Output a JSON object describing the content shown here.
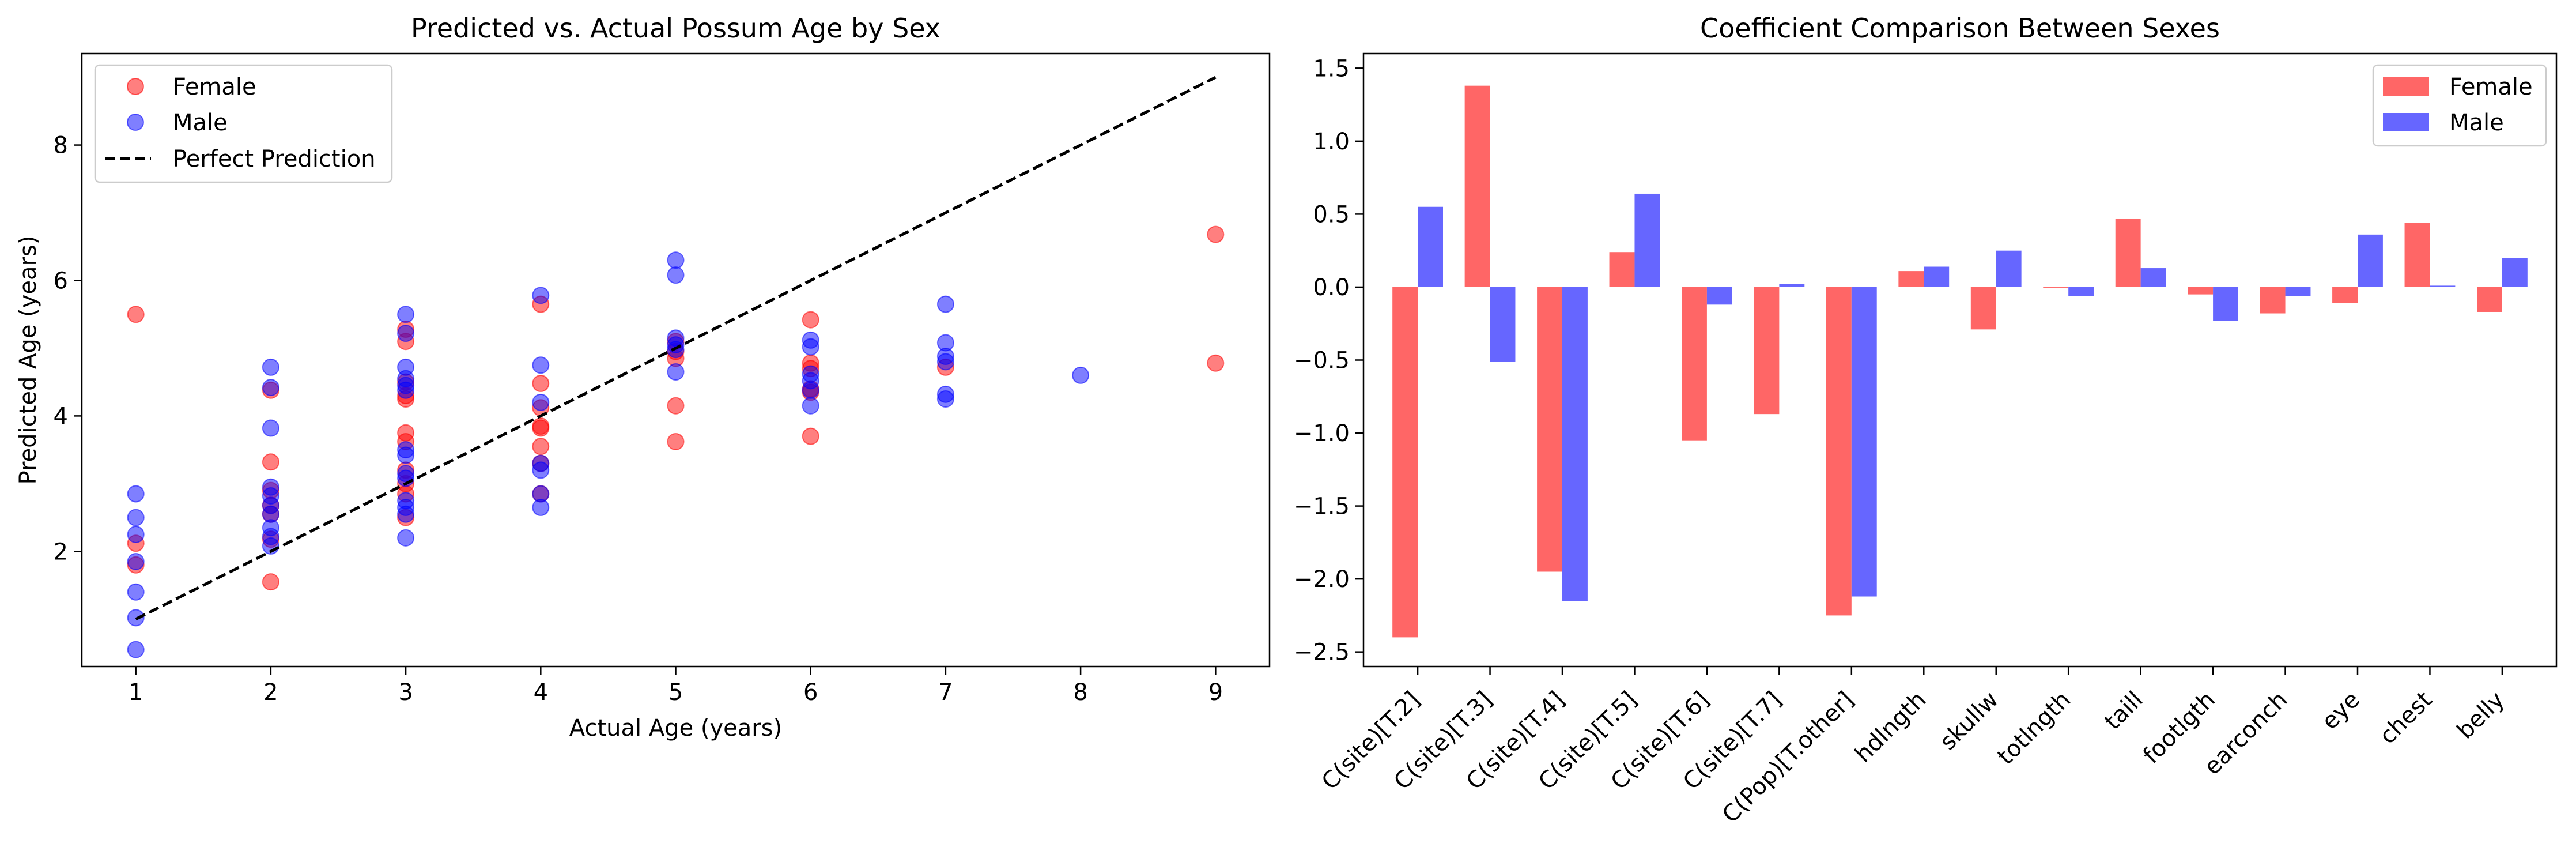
{
  "chart_data": [
    {
      "type": "scatter",
      "title": "Predicted vs. Actual Possum Age by Sex",
      "xlabel": "Actual Age (years)",
      "ylabel": "Predicted Age (years)",
      "xlim": [
        0.6,
        9.4
      ],
      "ylim": [
        0.3,
        9.35
      ],
      "xticks": [
        1,
        2,
        3,
        4,
        5,
        6,
        7,
        8,
        9
      ],
      "yticks": [
        2,
        4,
        6,
        8
      ],
      "grid": false,
      "legend": "upper left",
      "legend_labels": [
        "Female",
        "Male",
        "Perfect Prediction"
      ],
      "series": [
        {
          "name": "Female",
          "color": "#ff0000",
          "points": [
            [
              1,
              5.5
            ],
            [
              1,
              2.12
            ],
            [
              1,
              1.8
            ],
            [
              2,
              4.38
            ],
            [
              2,
              3.32
            ],
            [
              2,
              2.9
            ],
            [
              2,
              2.68
            ],
            [
              2,
              2.55
            ],
            [
              2,
              2.18
            ],
            [
              2,
              1.55
            ],
            [
              3,
              5.28
            ],
            [
              3,
              5.1
            ],
            [
              3,
              4.5
            ],
            [
              3,
              4.3
            ],
            [
              3,
              4.25
            ],
            [
              3,
              3.75
            ],
            [
              3,
              3.62
            ],
            [
              3,
              3.2
            ],
            [
              3,
              3.0
            ],
            [
              3,
              2.85
            ],
            [
              3,
              2.5
            ],
            [
              4,
              5.65
            ],
            [
              4,
              4.48
            ],
            [
              4,
              4.12
            ],
            [
              4,
              3.85
            ],
            [
              4,
              3.82
            ],
            [
              4,
              3.55
            ],
            [
              4,
              3.3
            ],
            [
              4,
              2.85
            ],
            [
              5,
              5.1
            ],
            [
              5,
              4.95
            ],
            [
              5,
              4.85
            ],
            [
              5,
              4.15
            ],
            [
              5,
              3.62
            ],
            [
              6,
              5.42
            ],
            [
              6,
              4.78
            ],
            [
              6,
              4.7
            ],
            [
              6,
              4.4
            ],
            [
              6,
              4.35
            ],
            [
              6,
              3.7
            ],
            [
              7,
              4.72
            ],
            [
              9,
              6.68
            ],
            [
              9,
              4.78
            ]
          ]
        },
        {
          "name": "Male",
          "color": "#0000ff",
          "points": [
            [
              1,
              2.85
            ],
            [
              1,
              2.5
            ],
            [
              1,
              2.25
            ],
            [
              1,
              1.85
            ],
            [
              1,
              1.4
            ],
            [
              1,
              1.02
            ],
            [
              1,
              0.55
            ],
            [
              2,
              4.72
            ],
            [
              2,
              4.42
            ],
            [
              2,
              3.82
            ],
            [
              2,
              2.95
            ],
            [
              2,
              2.82
            ],
            [
              2,
              2.68
            ],
            [
              2,
              2.55
            ],
            [
              2,
              2.35
            ],
            [
              2,
              2.22
            ],
            [
              2,
              2.08
            ],
            [
              3,
              5.5
            ],
            [
              3,
              5.22
            ],
            [
              3,
              4.72
            ],
            [
              3,
              4.55
            ],
            [
              3,
              4.45
            ],
            [
              3,
              4.38
            ],
            [
              3,
              3.5
            ],
            [
              3,
              3.42
            ],
            [
              3,
              3.15
            ],
            [
              3,
              3.08
            ],
            [
              3,
              2.75
            ],
            [
              3,
              2.65
            ],
            [
              3,
              2.55
            ],
            [
              3,
              2.2
            ],
            [
              4,
              5.78
            ],
            [
              4,
              4.75
            ],
            [
              4,
              4.2
            ],
            [
              4,
              3.3
            ],
            [
              4,
              3.2
            ],
            [
              4,
              2.85
            ],
            [
              4,
              2.65
            ],
            [
              5,
              6.3
            ],
            [
              5,
              6.08
            ],
            [
              5,
              5.15
            ],
            [
              5,
              5.05
            ],
            [
              5,
              4.98
            ],
            [
              5,
              4.65
            ],
            [
              6,
              5.12
            ],
            [
              6,
              5.02
            ],
            [
              6,
              4.62
            ],
            [
              6,
              4.52
            ],
            [
              6,
              4.38
            ],
            [
              6,
              4.15
            ],
            [
              7,
              5.65
            ],
            [
              7,
              5.08
            ],
            [
              7,
              4.88
            ],
            [
              7,
              4.8
            ],
            [
              7,
              4.32
            ],
            [
              7,
              4.25
            ],
            [
              8,
              4.6
            ]
          ]
        }
      ],
      "reference_line": {
        "name": "Perfect Prediction",
        "x": [
          1,
          9
        ],
        "y": [
          1,
          9
        ],
        "style": "dashed",
        "color": "#000000"
      }
    },
    {
      "type": "bar",
      "title": "Coefficient Comparison Between Sexes",
      "categories": [
        "C(site)[T.2]",
        "C(site)[T.3]",
        "C(site)[T.4]",
        "C(site)[T.5]",
        "C(site)[T.6]",
        "C(site)[T.7]",
        "C(Pop)[T.other]",
        "hdlngth",
        "skullw",
        "totlngth",
        "taill",
        "footlgth",
        "earconch",
        "eye",
        "chest",
        "belly"
      ],
      "ylim": [
        -2.6,
        1.6
      ],
      "yticks": [
        -2.5,
        -2.0,
        -1.5,
        -1.0,
        -0.5,
        0.0,
        0.5,
        1.0,
        1.5
      ],
      "ytick_labels": [
        "−2.5",
        "−2.0",
        "−1.5",
        "−1.0",
        "−0.5",
        "0.0",
        "0.5",
        "1.0",
        "1.5"
      ],
      "grid": false,
      "legend": "upper right",
      "legend_labels": [
        "Female",
        "Male"
      ],
      "series": [
        {
          "name": "Female",
          "color": "#ff6666",
          "values": [
            -2.4,
            1.38,
            -1.95,
            0.24,
            -1.05,
            -0.87,
            -2.25,
            0.11,
            -0.29,
            0.0,
            0.47,
            -0.05,
            -0.18,
            -0.11,
            0.44,
            -0.17
          ]
        },
        {
          "name": "Male",
          "color": "#6666ff",
          "values": [
            0.55,
            -0.51,
            -2.15,
            0.64,
            -0.12,
            0.02,
            -2.12,
            0.14,
            0.25,
            -0.06,
            0.13,
            -0.23,
            -0.06,
            0.36,
            0.01,
            0.2
          ]
        }
      ]
    }
  ]
}
